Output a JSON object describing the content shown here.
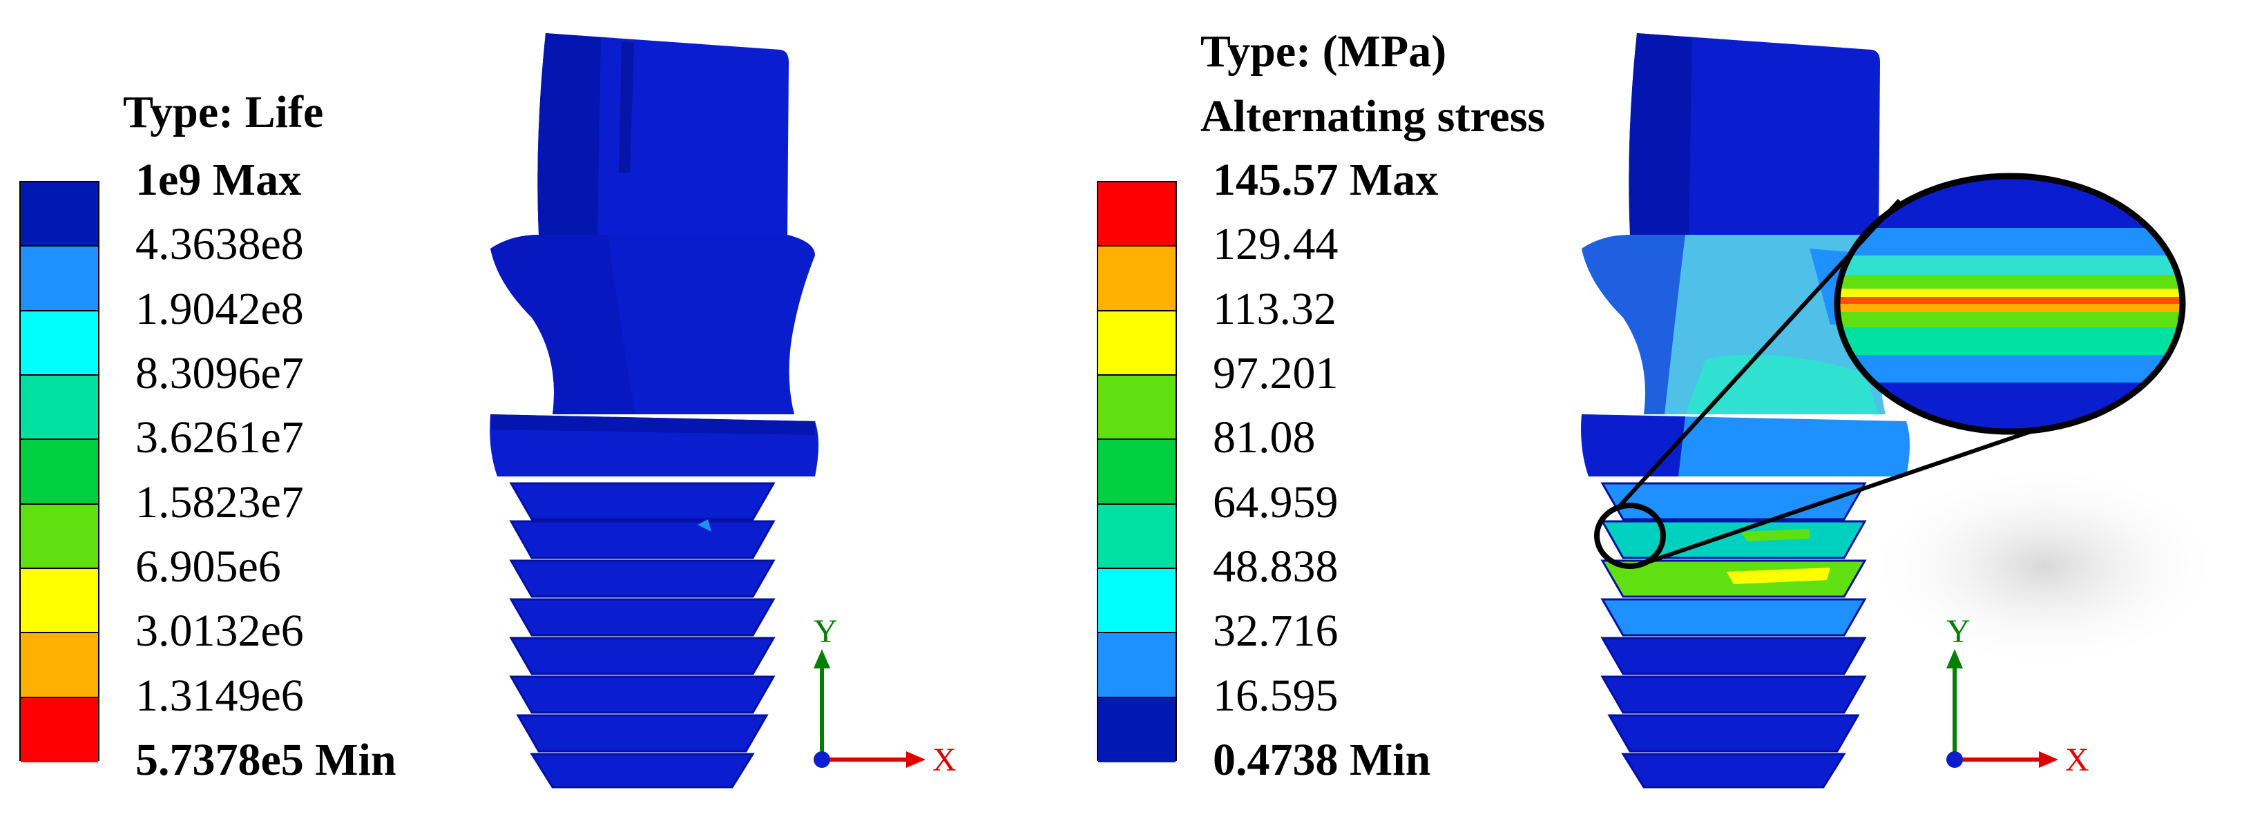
{
  "left_panel": {
    "title": "Type: Life",
    "colors": [
      "#0019b2",
      "#1e90ff",
      "#00ffff",
      "#00e0a0",
      "#00d040",
      "#60e010",
      "#ffff00",
      "#ffb000",
      "#ff0000"
    ],
    "labels": [
      "1e9 Max",
      "4.3638e8",
      "1.9042e8",
      "8.3096e7",
      "3.6261e7",
      "1.5823e7",
      "6.905e6",
      "3.0132e6",
      "1.3149e6",
      "5.7378e5 Min"
    ],
    "axis": {
      "y": "Y",
      "x": "X"
    }
  },
  "right_panel": {
    "title_line1": "Type: (MPa)",
    "title_line2": "Alternating stress",
    "colors": [
      "#ff0000",
      "#ffb000",
      "#ffff00",
      "#60e010",
      "#00d040",
      "#00e0a0",
      "#00ffff",
      "#1e90ff",
      "#0019b2"
    ],
    "labels": [
      "145.57 Max",
      "129.44",
      "113.32",
      "97.201",
      "81.08",
      "64.959",
      "48.838",
      "32.716",
      "16.595",
      "0.4738 Min"
    ],
    "axis": {
      "y": "Y",
      "x": "X"
    }
  }
}
